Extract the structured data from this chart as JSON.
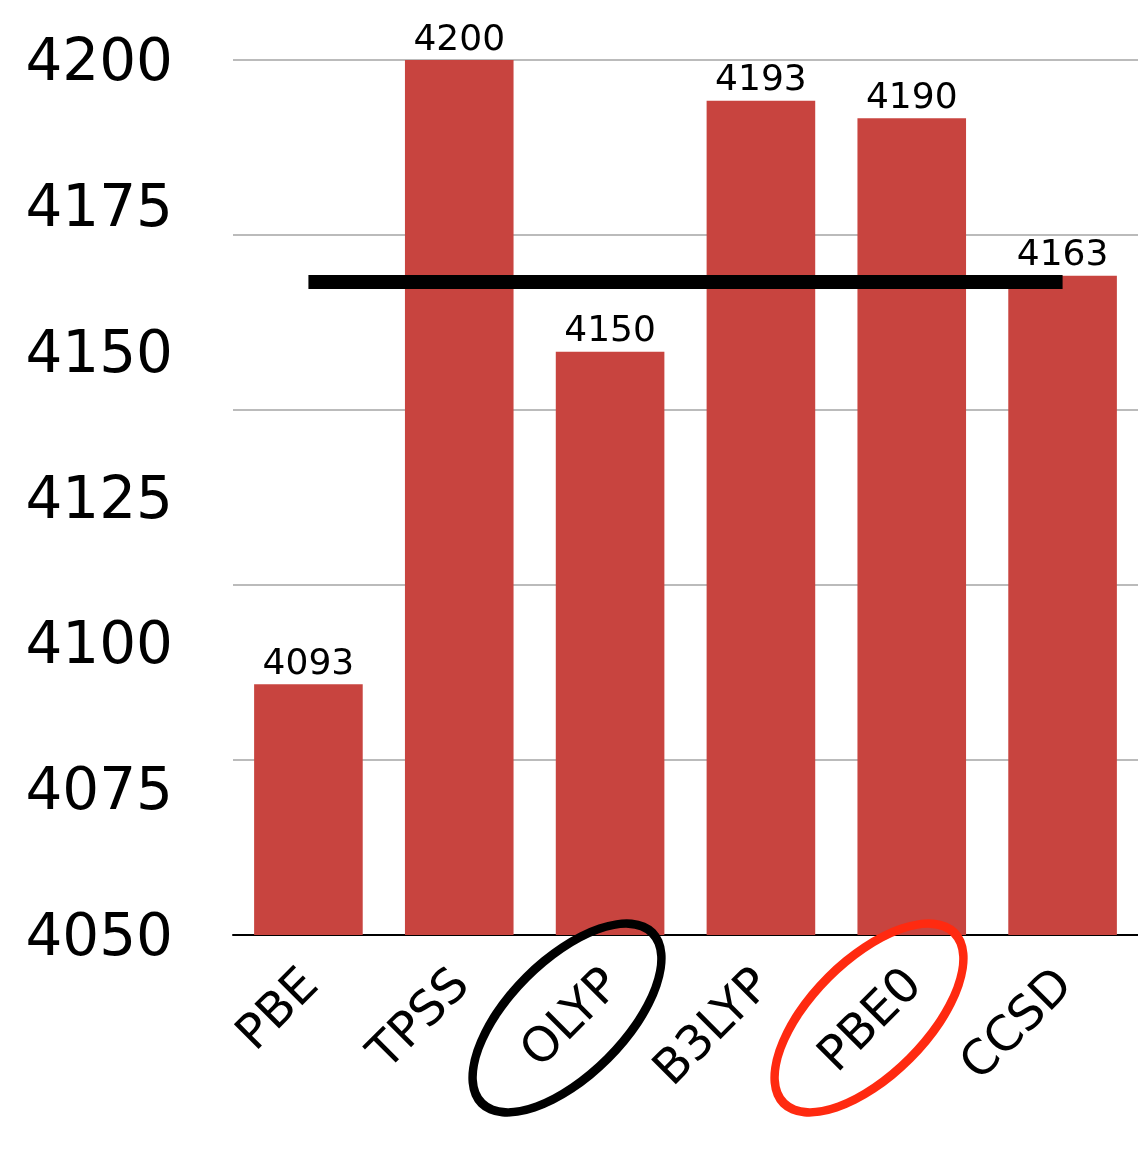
{
  "chart_data": {
    "type": "bar",
    "categories": [
      "PBE",
      "TPSS",
      "OLYP",
      "B3LYP",
      "PBE0",
      "CCSD"
    ],
    "values": [
      4093,
      4200,
      4150,
      4193,
      4190,
      4163
    ],
    "color": "#c8443f",
    "ylim": [
      4050,
      4200
    ],
    "yticks": [
      4050,
      4075,
      4100,
      4125,
      4150,
      4175,
      4200
    ],
    "grid": "y",
    "data_labels": true,
    "ref_lines": [
      {
        "axis": "y",
        "value": 4162,
        "color": "#000000"
      }
    ]
  }
}
